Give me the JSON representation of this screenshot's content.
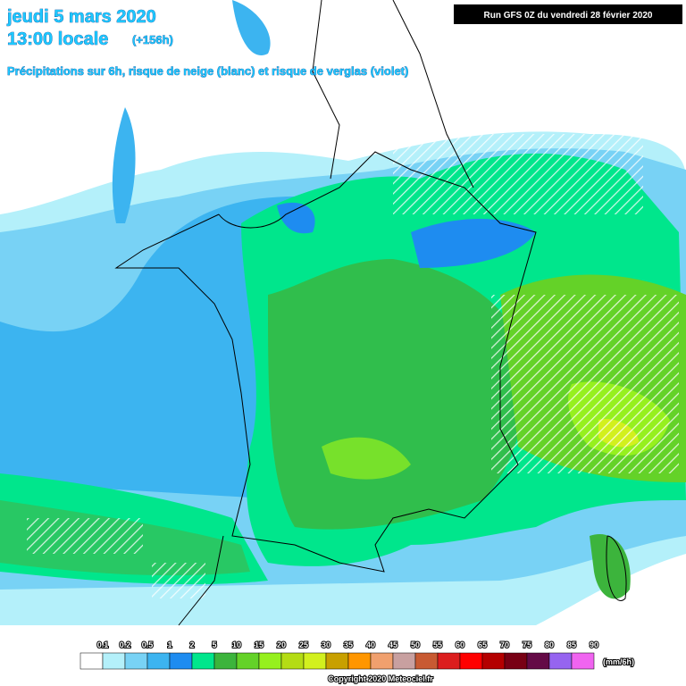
{
  "header": {
    "date": "jeudi 5 mars 2020",
    "time": "13:00 locale",
    "lead": "(+156h)",
    "subtitle": "Précipitations sur 6h, risque de neige (blanc) et risque de verglas (violet)",
    "run": "Run GFS 0Z du vendredi 28 février 2020"
  },
  "legend": {
    "labels": [
      0.1,
      0.2,
      0.5,
      1,
      2,
      5,
      10,
      15,
      20,
      25,
      30,
      35,
      40,
      45,
      50,
      55,
      60,
      65,
      70,
      75,
      80,
      85,
      90
    ],
    "colors": [
      "#ffffff",
      "#b4f0fa",
      "#78d2f5",
      "#3cb4f0",
      "#1e8cf0",
      "#00e68c",
      "#3cb43c",
      "#64d228",
      "#96f01e",
      "#b4dc14",
      "#d2f01e",
      "#c8a000",
      "#ff9600",
      "#f0a06e",
      "#c8a0a0",
      "#c85a32",
      "#dc1e1e",
      "#ff0000",
      "#b40000",
      "#780014",
      "#640a46",
      "#9664f0",
      "#f064f0"
    ],
    "unit": "(mm/6h)"
  },
  "footer": {
    "copyright": "Copyright 2020 Meteociel.fr"
  }
}
